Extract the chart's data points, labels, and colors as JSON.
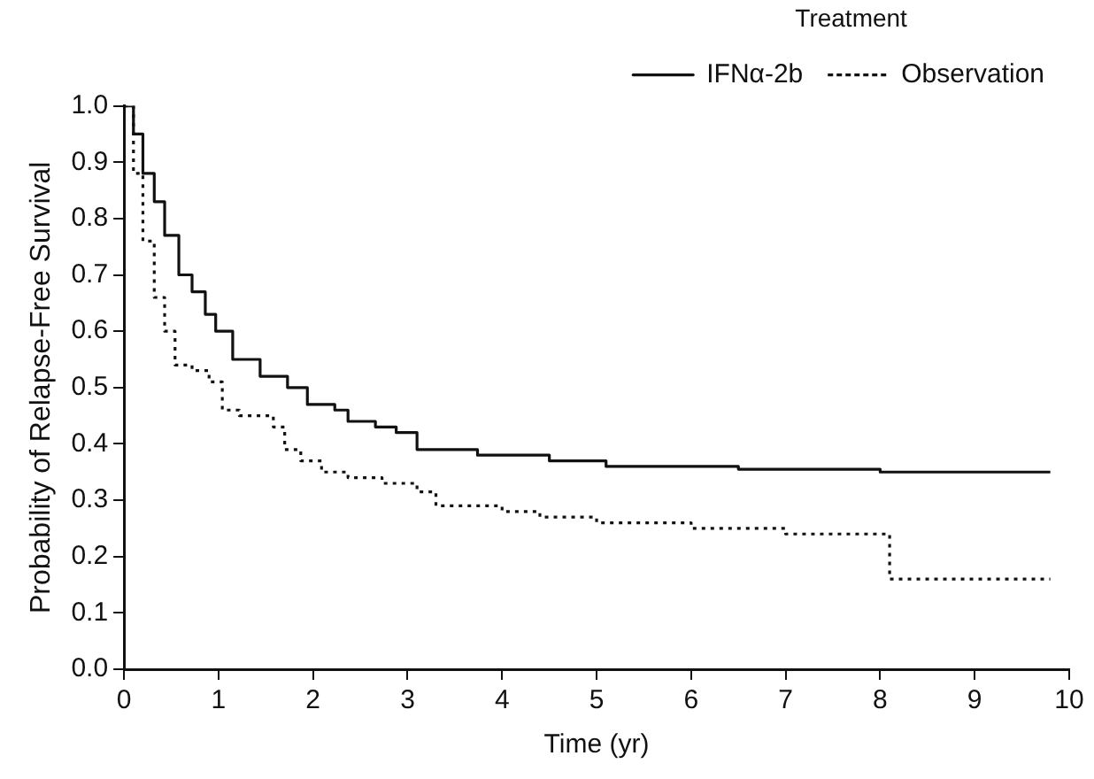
{
  "chart_data": {
    "type": "step",
    "xlabel": "Time (yr)",
    "ylabel": "Probability of Relapse-Free Survival",
    "legend_title": "Treatment",
    "legend": "top right",
    "grid": false,
    "marker": "none",
    "xlim": [
      0,
      10
    ],
    "xticks": [
      0,
      1,
      2,
      3,
      4,
      5,
      6,
      7,
      8,
      9,
      10
    ],
    "ylim": [
      0,
      1
    ],
    "yticks": [
      {
        "value": 0,
        "label": "0.0"
      },
      0.1,
      0.2,
      0.3,
      0.4,
      0.5,
      0.6,
      0.7,
      0.8,
      0.9,
      {
        "value": 1,
        "label": "1.0"
      }
    ],
    "series": [
      {
        "name": "IFNα-2b",
        "color": "#111111",
        "line_style": "solid",
        "x": [
          0,
          0.1,
          0.2,
          0.32,
          0.43,
          0.58,
          0.72,
          0.86,
          0.97,
          1.15,
          1.44,
          1.73,
          1.94,
          2.23,
          2.37,
          2.66,
          2.88,
          3.1,
          3.74,
          4.3,
          4.5,
          5.1,
          6.5,
          8,
          9.8
        ],
        "values": [
          1,
          0.95,
          0.88,
          0.83,
          0.77,
          0.7,
          0.67,
          0.63,
          0.6,
          0.55,
          0.52,
          0.5,
          0.47,
          0.46,
          0.44,
          0.43,
          0.42,
          0.39,
          0.38,
          0.38,
          0.37,
          0.36,
          0.355,
          0.35,
          0.35
        ]
      },
      {
        "name": "Observation",
        "color": "#111111",
        "line_style": "dotted",
        "x": [
          0,
          0.1,
          0.2,
          0.32,
          0.43,
          0.54,
          0.72,
          0.9,
          1.04,
          1.22,
          1.58,
          1.7,
          1.87,
          2.09,
          2.37,
          2.73,
          3.1,
          3.3,
          4,
          4.4,
          5,
          6,
          7,
          8.1,
          9.8
        ],
        "values": [
          1,
          0.88,
          0.76,
          0.66,
          0.6,
          0.54,
          0.53,
          0.51,
          0.46,
          0.45,
          0.43,
          0.39,
          0.37,
          0.35,
          0.34,
          0.33,
          0.315,
          0.29,
          0.28,
          0.27,
          0.26,
          0.25,
          0.24,
          0.16,
          0.16
        ]
      }
    ]
  }
}
